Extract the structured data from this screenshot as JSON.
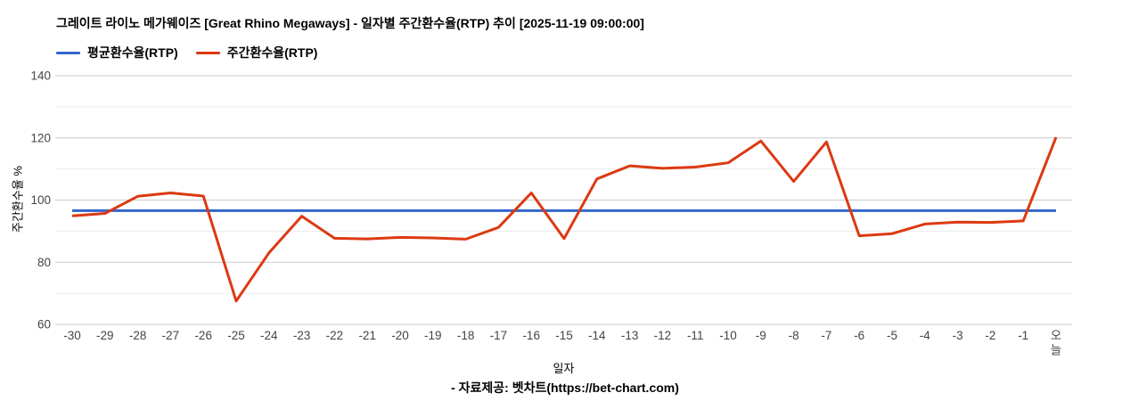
{
  "header": {
    "title": "그레이트 라이노 메가웨이즈 [Great Rhino Megaways] - 일자별 주간환수율(RTP) 추이 [2025-11-19 09:00:00]"
  },
  "legend": {
    "items": [
      {
        "label": "평균환수율(RTP)",
        "color": "#3366cc"
      },
      {
        "label": "주간환수율(RTP)",
        "color": "#dc3912"
      }
    ]
  },
  "axes": {
    "y_title": "주간환수율 %",
    "x_title": "일자",
    "y_tick_labels": [
      "140",
      "120",
      "100",
      "80",
      "60"
    ],
    "tick_color": "#444444",
    "major_grid_color": "#cccccc",
    "minor_grid_color": "#ebebeb"
  },
  "footer": {
    "text": "- 자료제공: 벳차트(https://bet-chart.com)"
  },
  "chart_data": {
    "type": "line",
    "title": "그레이트 라이노 메가웨이즈 [Great Rhino Megaways] - 일자별 주간환수율(RTP) 추이 [2025-11-19 09:00:00]",
    "xlabel": "일자",
    "ylabel": "주간환수율 %",
    "ylim": [
      60,
      140
    ],
    "y_ticks_labeled": [
      60,
      80,
      100,
      120,
      140
    ],
    "y_gridlines_minor": [
      70,
      90,
      110,
      130
    ],
    "grid": true,
    "legend_position": "top",
    "categories": [
      "-30",
      "-29",
      "-28",
      "-27",
      "-26",
      "-25",
      "-24",
      "-23",
      "-22",
      "-21",
      "-20",
      "-19",
      "-18",
      "-17",
      "-16",
      "-15",
      "-14",
      "-13",
      "-12",
      "-11",
      "-10",
      "-9",
      "-8",
      "-7",
      "-6",
      "-5",
      "-4",
      "-3",
      "-2",
      "-1",
      "오늘"
    ],
    "series": [
      {
        "name": "평균환수율(RTP)",
        "color": "#3366cc",
        "constant": true,
        "values": [
          96.6,
          96.6,
          96.6,
          96.6,
          96.6,
          96.6,
          96.6,
          96.6,
          96.6,
          96.6,
          96.6,
          96.6,
          96.6,
          96.6,
          96.6,
          96.6,
          96.6,
          96.6,
          96.6,
          96.6,
          96.6,
          96.6,
          96.6,
          96.6,
          96.6,
          96.6,
          96.6,
          96.6,
          96.6,
          96.6,
          96.6
        ]
      },
      {
        "name": "주간환수율(RTP)",
        "color": "#dc3912",
        "constant": false,
        "values": [
          94.9,
          95.7,
          101.2,
          102.3,
          101.3,
          67.5,
          83.0,
          94.8,
          87.7,
          87.5,
          88.0,
          87.8,
          87.4,
          91.2,
          102.3,
          87.6,
          106.8,
          111.0,
          110.2,
          110.6,
          112.0,
          119.0,
          106.0,
          118.7,
          88.5,
          89.2,
          92.3,
          92.9,
          92.8,
          93.3,
          120.2
        ]
      }
    ]
  }
}
